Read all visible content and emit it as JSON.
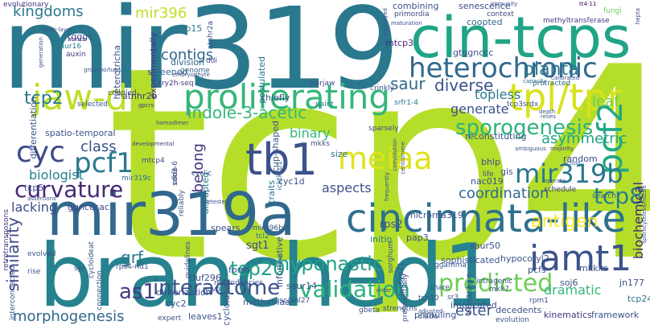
{
  "words": {
    "tcp4": "tcp4",
    "branched1": "branched1",
    "mir319": "mir319",
    "mir319a": "mir319a",
    "cin_tcps": "cin-tcps",
    "cincinnata_like": "cincinnata-like",
    "proliferating": "proliferating",
    "tpl_tpr": "tpl/tpr",
    "heterochronic": "heterochronic",
    "jaw_d": "jaw-d",
    "cyc": "cyc",
    "tb1": "tb1",
    "meiaa": "meiaa",
    "pcf2": "pcf2",
    "iamt1": "iamt1",
    "curvature": "curvature",
    "pcf1": "pcf1",
    "mir319b": "mir319b",
    "sporogenesis": "sporogenesis",
    "predicted": "predicted",
    "validation": "validation",
    "interactome": "interactome",
    "hyponastic": "hyponastic",
    "tcp8": "tcp8",
    "as1": "as1",
    "tcp20": "tcp20",
    "diverse": "diverse",
    "planta": "planta",
    "indole_3_acetic": "indole-3-acetic",
    "tcp2": "tcp2",
    "kingdoms": "kingdoms",
    "mir396": "mir396",
    "contigs": "contigs",
    "saur": "saur",
    "antigen": "antigen",
    "similarity": "similarity",
    "morphogenesis": "morphogenesis",
    "class": "class",
    "biologist": "biologist",
    "coordination": "coordination",
    "leaf": "leaf",
    "belong": "belong",
    "grf": "grf",
    "binary": "binary",
    "aspects": "aspects",
    "asymmetric": "asymmetric",
    "generate": "generate",
    "topless": "topless",
    "lacking": "lacking",
    "ester": "ester",
    "dramatic": "dramatic",
    "biochemical": "biochemical",
    "sgt1": "sgt1",
    "rps2": "rps2"
  },
  "small_words": [
    "evolutionary",
    "screened",
    "heterotricha",
    "tcp15",
    "experimentally",
    "mtcp3",
    "gtggnccc",
    "methyltransferase",
    "senescence",
    "coopted",
    "primordia",
    "combining",
    "context",
    "fungi",
    "tt4-11",
    "hepta",
    "atnhr2a",
    "cup-shaped",
    "postulated",
    "division",
    "auxin",
    "tgggc",
    "saur16",
    "at-rich",
    "retrotransposons",
    "differentiation",
    "spatio-temporal",
    "selected",
    "coupled",
    "cry2h-seq",
    "genome",
    "ddi",
    "chiefly",
    "mirjaw",
    "paint",
    "crinkly",
    "srfr1-4",
    "tcp3srdx",
    "protracted",
    "calibrated",
    "capacity",
    "relies",
    "majority",
    "random",
    "action",
    "bhlp",
    "mkks",
    "size",
    "life",
    "gis",
    "nac019",
    "schedule",
    "search",
    "reconstituting",
    "sparsely",
    "icktkrp1",
    "traits",
    "cyc1d",
    "cyclic",
    "code",
    "disrupted",
    "reliably",
    "mtcp4",
    "mir319c",
    "sdb3-6",
    "developmental",
    "homodimer",
    "gpcrs",
    "atnhr2b",
    "embryophyte",
    "ggncccac",
    "spears",
    "mir396b",
    "tcl2",
    "pap3",
    "initio",
    "retested",
    "coevolution",
    "microrna319",
    "saur50",
    "hypocotyl2",
    "sophisticated",
    "pcfs",
    "mkkks",
    "jn177",
    "tcp24",
    "soj6",
    "mkk7",
    "rpm1",
    "implicated",
    "decedents",
    "kinematics",
    "framework",
    "primuling",
    "leaves1",
    "gbeta",
    "strengths",
    "tcp10",
    "sr3",
    "clade",
    "evolution",
    "bcld3/short",
    "preferentially",
    "sorghum",
    "ggamma",
    "share",
    "saur14",
    "esc/ahl27",
    "methyl-iaa",
    "informative",
    "cycloidea2",
    "novo",
    "cyc2",
    "expert",
    "dimerization",
    "duf296",
    "redundancies",
    "form",
    "connection",
    "interconnected",
    "rps4-rld1",
    "spl",
    "rise",
    "evolved",
    "assertions",
    "tcp5",
    "guidelines",
    "cycloideat",
    "tuecyp71",
    "enter",
    "adjusted",
    "ambiguous",
    "operate",
    "death",
    "maturation",
    "immunity",
    "portrayed",
    "sporocyteless/nozzle",
    "centromere",
    "frequently",
    "generation",
    "multi-layer",
    "groucho/tup1",
    "intragenic",
    "2b"
  ]
}
